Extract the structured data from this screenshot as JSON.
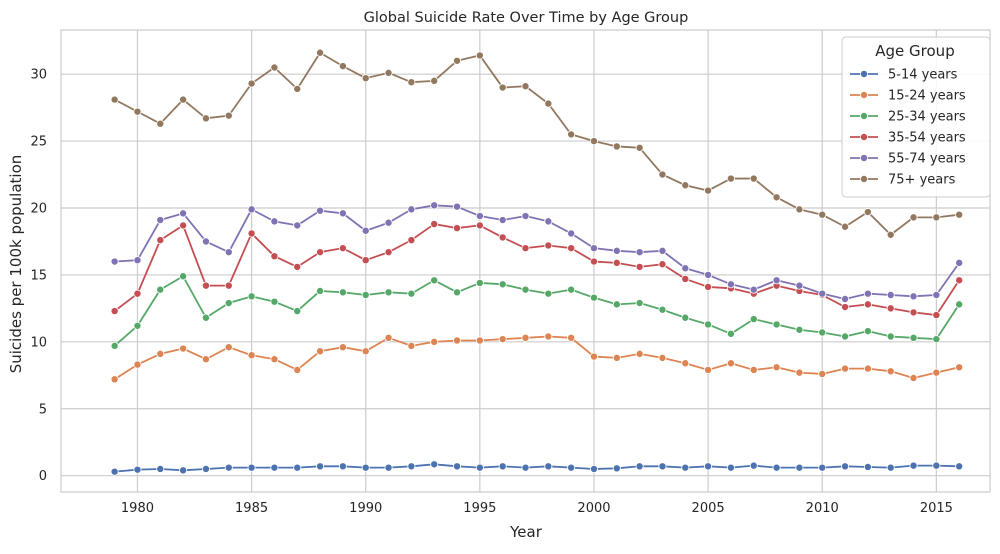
{
  "chart_data": {
    "type": "line",
    "title": "Global Suicide Rate Over Time by Age Group",
    "xlabel": "Year",
    "ylabel": "Suicides per 100k population",
    "xlim": [
      1976.65,
      2017.35
    ],
    "ylim": [
      -1.22,
      33.3
    ],
    "x_ticks": [
      1980,
      1985,
      1990,
      1995,
      2000,
      2005,
      2010,
      2015
    ],
    "y_ticks": [
      0,
      5,
      10,
      15,
      20,
      25,
      30
    ],
    "grid": true,
    "legend": {
      "title": "Age Group",
      "position": "top-right"
    },
    "x": [
      1979,
      1980,
      1981,
      1982,
      1983,
      1984,
      1985,
      1986,
      1987,
      1988,
      1989,
      1990,
      1991,
      1992,
      1993,
      1994,
      1995,
      1996,
      1997,
      1998,
      1999,
      2000,
      2001,
      2002,
      2003,
      2004,
      2005,
      2006,
      2007,
      2008,
      2009,
      2010,
      2011,
      2012,
      2013,
      2014,
      2015,
      2016
    ],
    "series": [
      {
        "name": "5-14 years",
        "color": "#4c72b0",
        "values": [
          0.3,
          0.45,
          0.5,
          0.4,
          0.5,
          0.6,
          0.6,
          0.6,
          0.6,
          0.7,
          0.7,
          0.6,
          0.6,
          0.7,
          0.85,
          0.7,
          0.6,
          0.7,
          0.6,
          0.7,
          0.6,
          0.5,
          0.55,
          0.7,
          0.7,
          0.6,
          0.7,
          0.6,
          0.75,
          0.6,
          0.6,
          0.6,
          0.7,
          0.65,
          0.6,
          0.75,
          0.75,
          0.7
        ]
      },
      {
        "name": "15-24 years",
        "color": "#dd8452",
        "values": [
          7.2,
          8.3,
          9.1,
          9.5,
          8.7,
          9.6,
          9.0,
          8.7,
          7.9,
          9.3,
          9.6,
          9.3,
          10.3,
          9.7,
          10.0,
          10.1,
          10.1,
          10.2,
          10.3,
          10.4,
          10.3,
          8.9,
          8.8,
          9.1,
          8.8,
          8.4,
          7.9,
          8.4,
          7.9,
          8.1,
          7.7,
          7.6,
          8.0,
          8.0,
          7.8,
          7.3,
          7.7,
          8.1
        ]
      },
      {
        "name": "25-34 years",
        "color": "#55a868",
        "values": [
          9.7,
          11.2,
          13.9,
          14.9,
          11.8,
          12.9,
          13.4,
          13.0,
          12.3,
          13.8,
          13.7,
          13.5,
          13.7,
          13.6,
          14.6,
          13.7,
          14.4,
          14.3,
          13.9,
          13.6,
          13.9,
          13.3,
          12.8,
          12.9,
          12.4,
          11.8,
          11.3,
          10.6,
          11.7,
          11.3,
          10.9,
          10.7,
          10.4,
          10.8,
          10.4,
          10.3,
          10.2,
          12.8
        ]
      },
      {
        "name": "35-54 years",
        "color": "#c44e52",
        "values": [
          12.3,
          13.6,
          17.6,
          18.7,
          14.2,
          14.2,
          18.1,
          16.4,
          15.6,
          16.7,
          17.0,
          16.1,
          16.7,
          17.6,
          18.8,
          18.5,
          18.7,
          17.8,
          17.0,
          17.2,
          17.0,
          16.0,
          15.9,
          15.6,
          15.8,
          14.7,
          14.1,
          14.0,
          13.6,
          14.2,
          13.8,
          13.5,
          12.6,
          12.8,
          12.5,
          12.2,
          12.0,
          14.6
        ]
      },
      {
        "name": "55-74 years",
        "color": "#8172b3",
        "values": [
          16.0,
          16.1,
          19.1,
          19.6,
          17.5,
          16.7,
          19.9,
          19.0,
          18.7,
          19.8,
          19.6,
          18.3,
          18.9,
          19.9,
          20.2,
          20.1,
          19.4,
          19.1,
          19.4,
          19.0,
          18.1,
          17.0,
          16.8,
          16.7,
          16.8,
          15.5,
          15.0,
          14.3,
          13.9,
          14.6,
          14.2,
          13.6,
          13.2,
          13.6,
          13.5,
          13.4,
          13.5,
          15.9
        ]
      },
      {
        "name": "75+ years",
        "color": "#937860",
        "values": [
          28.1,
          27.2,
          26.3,
          28.1,
          26.7,
          26.9,
          29.3,
          30.5,
          28.9,
          31.6,
          30.6,
          29.7,
          30.1,
          29.4,
          29.5,
          31.0,
          31.4,
          29.0,
          29.1,
          27.8,
          25.5,
          25.0,
          24.6,
          24.5,
          22.5,
          21.7,
          21.3,
          22.2,
          22.2,
          20.8,
          19.9,
          19.5,
          18.6,
          19.7,
          18.0,
          19.3,
          19.3,
          19.5
        ]
      }
    ]
  }
}
